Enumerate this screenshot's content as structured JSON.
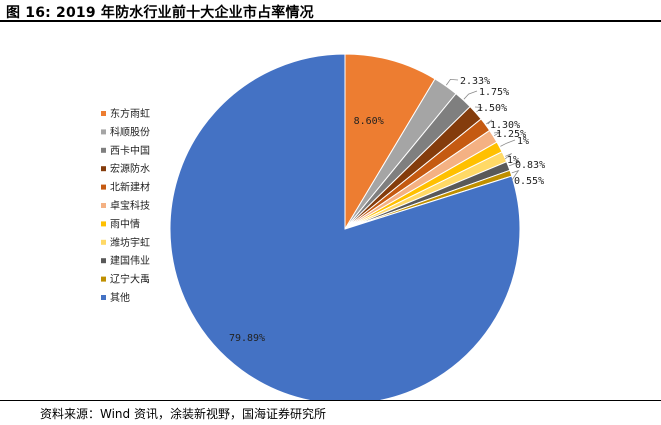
{
  "figure": {
    "title": "图 16:  2019 年防水行业前十大企业市占率情况",
    "source": "资料来源：Wind 资讯，涂装新视野，国海证券研究所"
  },
  "chart_data": {
    "type": "pie",
    "legend_position": "left",
    "labels": [
      "东方雨虹",
      "科顺股份",
      "西卡中国",
      "宏源防水",
      "北新建材",
      "卓宝科技",
      "雨中情",
      "潍坊宇虹",
      "建国伟业",
      "辽宁大禹",
      "其他"
    ],
    "values": [
      8.6,
      2.33,
      1.75,
      1.5,
      1.3,
      1.25,
      1,
      1,
      0.83,
      0.55,
      79.89
    ],
    "value_labels": [
      "8.60%",
      "2.33%",
      "1.75%",
      "1.50%",
      "1.30%",
      "1.25%",
      "1%",
      "1%",
      "0.83%",
      "0.55%",
      "79.89%"
    ],
    "colors": [
      "#ED7D31",
      "#A5A5A5",
      "#7F7F7F",
      "#843C0C",
      "#C55A11",
      "#F4B183",
      "#FFC000",
      "#FFD966",
      "#595959",
      "#BF8F00",
      "#4472C4"
    ],
    "slice_border": "#ffffff"
  }
}
